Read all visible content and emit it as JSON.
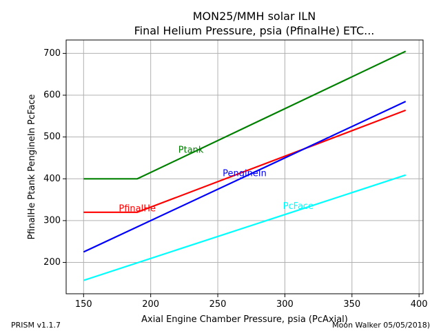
{
  "chart_data": {
    "type": "line",
    "title": [
      "MON25/MMH solar ILN",
      "Final Helium Pressure, psia (PfinalHe) ETC..."
    ],
    "xlabel": "Axial Engine Chamber Pressure, psia (PcAxial)",
    "ylabel": "PfinalHe Ptank PengineIn PcFace",
    "xlim": [
      137,
      403
    ],
    "ylim": [
      125,
      732
    ],
    "xticks": [
      150,
      200,
      250,
      300,
      350,
      400
    ],
    "yticks": [
      200,
      300,
      400,
      500,
      600,
      700
    ],
    "grid": true,
    "series": [
      {
        "name": "Ptank",
        "color": "#008000",
        "x": [
          150,
          190,
          390
        ],
        "y": [
          400,
          400,
          705
        ]
      },
      {
        "name": "PfinalHe",
        "color": "#ff0000",
        "x": [
          150,
          190,
          390
        ],
        "y": [
          320,
          320,
          564
        ]
      },
      {
        "name": "PengineIn",
        "color": "#0000ff",
        "x": [
          150,
          390
        ],
        "y": [
          225,
          585
        ]
      },
      {
        "name": "PcFace",
        "color": "#00ffff",
        "x": [
          150,
          390
        ],
        "y": [
          157,
          409
        ]
      }
    ],
    "annotations": [
      {
        "text": "Ptank",
        "x": 230,
        "y": 468,
        "color": "#008000"
      },
      {
        "text": "PfinalHe",
        "x": 190,
        "y": 328,
        "color": "#ff0000"
      },
      {
        "text": "PengineIn",
        "x": 270,
        "y": 412,
        "color": "#0000ff"
      },
      {
        "text": "PcFace",
        "x": 310,
        "y": 334,
        "color": "#00ffff"
      }
    ]
  },
  "footer": {
    "left": "PRISM v1.1.7",
    "right": "Moon Walker 05/05/2018)"
  }
}
